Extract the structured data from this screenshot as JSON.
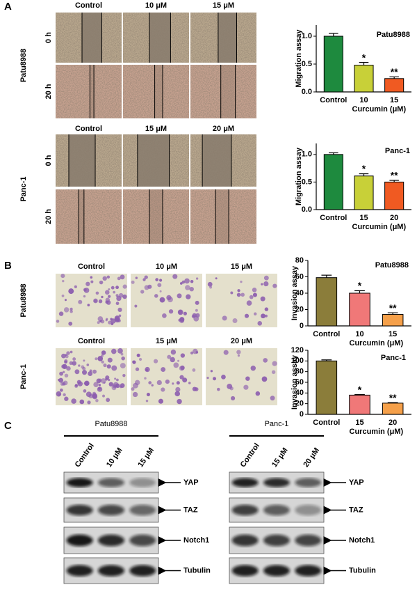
{
  "panel_labels": [
    "A",
    "B",
    "C"
  ],
  "migration": [
    {
      "cell_line": "Patu8988",
      "columns": [
        "Control",
        "10 μM",
        "15 μM"
      ],
      "times": [
        "0 h",
        "20 h"
      ]
    },
    {
      "cell_line": "Panc-1",
      "columns": [
        "Control",
        "15 μM",
        "20 μM"
      ],
      "times": [
        "0 h",
        "20 h"
      ]
    }
  ],
  "invasion": [
    {
      "cell_line": "Patu8988",
      "columns": [
        "Control",
        "10 μM",
        "15 μM"
      ]
    },
    {
      "cell_line": "Panc-1",
      "columns": [
        "Control",
        "15 μM",
        "20 μM"
      ]
    }
  ],
  "western": [
    {
      "cell_line": "Patu8988",
      "lanes": [
        "Control",
        "10 μM",
        "15 μM"
      ]
    },
    {
      "cell_line": "Panc-1",
      "lanes": [
        "Control",
        "15 μM",
        "20 μM"
      ]
    }
  ],
  "proteins": [
    "YAP",
    "TAZ",
    "Notch1",
    "Tubulin"
  ],
  "chart_data": [
    {
      "type": "bar",
      "title": "Patu8988",
      "y_label": "Migration assay",
      "x_label": "Curcumin (μM)",
      "categories": [
        "Control",
        "10",
        "15"
      ],
      "values": [
        1.0,
        0.48,
        0.24
      ],
      "errors": [
        0.05,
        0.05,
        0.03
      ],
      "significance": [
        null,
        "*",
        "**"
      ],
      "colors": [
        "#1e8a3e",
        "#c8d038",
        "#f05a22"
      ],
      "ylim": [
        0,
        1.2
      ],
      "yticks": [
        {
          "value": 0,
          "label": "0.0"
        },
        {
          "value": 0.5,
          "label": "0.5"
        },
        {
          "value": 1,
          "label": "1.0"
        }
      ]
    },
    {
      "type": "bar",
      "title": "Panc-1",
      "y_label": "Migration assay",
      "x_label": "Curcumin (μM)",
      "categories": [
        "Control",
        "15",
        "20"
      ],
      "values": [
        1.0,
        0.61,
        0.5
      ],
      "errors": [
        0.03,
        0.04,
        0.03
      ],
      "significance": [
        null,
        "*",
        "**"
      ],
      "colors": [
        "#1e8a3e",
        "#c8d038",
        "#f05a22"
      ],
      "ylim": [
        0,
        1.2
      ],
      "yticks": [
        {
          "value": 0,
          "label": "0.0"
        },
        {
          "value": 0.5,
          "label": "0.5"
        },
        {
          "value": 1,
          "label": "1.0"
        }
      ]
    },
    {
      "type": "bar",
      "title": "Patu8988",
      "y_label": "Invasion assay",
      "x_label": "Curcumin (μM)",
      "categories": [
        "Control",
        "10",
        "15"
      ],
      "values": [
        59,
        40,
        14
      ],
      "errors": [
        3,
        3,
        2
      ],
      "significance": [
        null,
        "*",
        "**"
      ],
      "colors": [
        "#8b7d3a",
        "#f07878",
        "#f5a04a"
      ],
      "ylim": [
        0,
        80
      ],
      "yticks": [
        0,
        20,
        40,
        60,
        80
      ]
    },
    {
      "type": "bar",
      "title": "Panc-1",
      "y_label": "Invasion assay",
      "x_label": "Curcumin (μM)",
      "categories": [
        "Control",
        "15",
        "20"
      ],
      "values": [
        100,
        36,
        21
      ],
      "errors": [
        2,
        1,
        1
      ],
      "significance": [
        null,
        "*",
        "**"
      ],
      "colors": [
        "#8b7d3a",
        "#f07878",
        "#f5a04a"
      ],
      "ylim": [
        0,
        120
      ],
      "yticks": [
        0,
        20,
        40,
        60,
        80,
        100,
        120
      ]
    }
  ]
}
